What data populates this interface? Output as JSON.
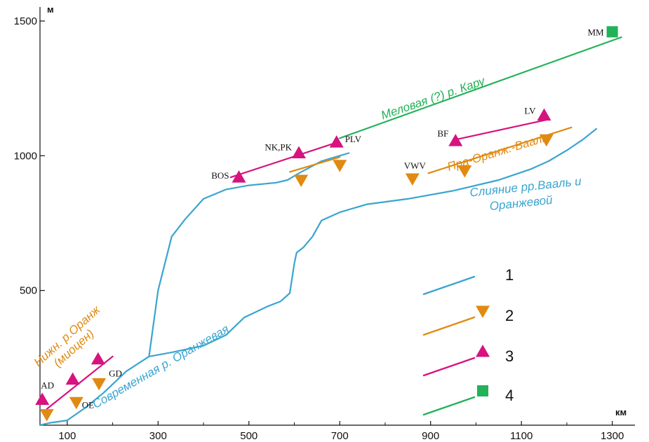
{
  "chart_data": {
    "type": "line",
    "title": "",
    "xlabel": "км",
    "ylabel": "м",
    "xlim": [
      40,
      1350
    ],
    "ylim": [
      0,
      1500
    ],
    "xticks": [
      100,
      300,
      500,
      700,
      900,
      1100,
      1300
    ],
    "yticks": [
      500,
      1000,
      1500
    ],
    "colors": {
      "blue": "#3aa5cf",
      "orange": "#e08a12",
      "magenta": "#d6137f",
      "green": "#22b257"
    },
    "series": [
      {
        "key": "modern_orange",
        "color": "#3aa5cf",
        "points": [
          [
            40,
            0
          ],
          [
            60,
            8
          ],
          [
            100,
            18
          ],
          [
            140,
            65
          ],
          [
            180,
            120
          ],
          [
            230,
            200
          ],
          [
            280,
            255
          ],
          [
            330,
            270
          ],
          [
            400,
            295
          ],
          [
            450,
            335
          ],
          [
            490,
            400
          ],
          [
            540,
            440
          ],
          [
            570,
            460
          ],
          [
            590,
            490
          ],
          [
            600,
            600
          ],
          [
            605,
            640
          ],
          [
            620,
            660
          ],
          [
            640,
            700
          ],
          [
            660,
            760
          ],
          [
            700,
            790
          ],
          [
            760,
            820
          ],
          [
            850,
            840
          ],
          [
            950,
            870
          ],
          [
            1050,
            910
          ],
          [
            1120,
            950
          ],
          [
            1160,
            980
          ],
          [
            1200,
            1020
          ],
          [
            1235,
            1060
          ],
          [
            1265,
            1100
          ]
        ]
      },
      {
        "key": "branch_upper",
        "color": "#3aa5cf",
        "points": [
          [
            280,
            255
          ],
          [
            300,
            500
          ],
          [
            330,
            700
          ],
          [
            360,
            765
          ],
          [
            400,
            840
          ],
          [
            450,
            875
          ],
          [
            500,
            890
          ],
          [
            560,
            900
          ],
          [
            585,
            910
          ],
          [
            610,
            935
          ],
          [
            660,
            980
          ],
          [
            700,
            1000
          ],
          [
            720,
            1010
          ]
        ]
      },
      {
        "key": "lower_orange_miocene",
        "color": "#d6137f",
        "points": [
          [
            55,
            60
          ],
          [
            200,
            255
          ]
        ]
      },
      {
        "key": "nk_plv",
        "color": "#d6137f",
        "points": [
          [
            460,
            920
          ],
          [
            695,
            1050
          ]
        ]
      },
      {
        "key": "nk_plv_orange",
        "color": "#e08a12",
        "points": [
          [
            590,
            940
          ],
          [
            700,
            995
          ]
        ]
      },
      {
        "key": "cretaceous_karoo",
        "color": "#22b257",
        "points": [
          [
            700,
            1065
          ],
          [
            1320,
            1440
          ]
        ]
      },
      {
        "key": "pra_orange_vaal_orange",
        "color": "#e08a12",
        "points": [
          [
            895,
            935
          ],
          [
            1210,
            1105
          ]
        ]
      },
      {
        "key": "pra_orange_vaal_magenta",
        "color": "#d6137f",
        "points": [
          [
            955,
            1060
          ],
          [
            1160,
            1135
          ]
        ]
      }
    ],
    "markers": [
      {
        "name": "AD",
        "shape": "triangle-up",
        "color": "#d6137f",
        "x": 45,
        "y": 95
      },
      {
        "name": "",
        "shape": "triangle-down",
        "color": "#e08a12",
        "x": 55,
        "y": 40
      },
      {
        "name": "",
        "shape": "triangle-up",
        "color": "#d6137f",
        "x": 112,
        "y": 170
      },
      {
        "name": "OE",
        "shape": "triangle-down",
        "color": "#e08a12",
        "x": 120,
        "y": 85
      },
      {
        "name": "",
        "shape": "triangle-up",
        "color": "#d6137f",
        "x": 168,
        "y": 245
      },
      {
        "name": "GD",
        "shape": "triangle-down",
        "color": "#e08a12",
        "x": 170,
        "y": 155
      },
      {
        "name": "BOS",
        "shape": "triangle-up",
        "color": "#d6137f",
        "x": 478,
        "y": 920
      },
      {
        "name": "",
        "shape": "triangle-down",
        "color": "#e08a12",
        "x": 615,
        "y": 910
      },
      {
        "name": "NK,PK",
        "shape": "triangle-up",
        "color": "#d6137f",
        "x": 610,
        "y": 1010
      },
      {
        "name": "PLV",
        "shape": "triangle-up",
        "color": "#d6137f",
        "x": 693,
        "y": 1050
      },
      {
        "name": "",
        "shape": "triangle-down",
        "color": "#e08a12",
        "x": 700,
        "y": 965
      },
      {
        "name": "VWV",
        "shape": "triangle-down",
        "color": "#e08a12",
        "x": 860,
        "y": 915
      },
      {
        "name": "BF",
        "shape": "triangle-up",
        "color": "#d6137f",
        "x": 955,
        "y": 1055
      },
      {
        "name": "",
        "shape": "triangle-down",
        "color": "#e08a12",
        "x": 975,
        "y": 945
      },
      {
        "name": "LV",
        "shape": "triangle-up",
        "color": "#d6137f",
        "x": 1150,
        "y": 1150
      },
      {
        "name": "",
        "shape": "triangle-down",
        "color": "#e08a12",
        "x": 1155,
        "y": 1060
      },
      {
        "name": "MM",
        "shape": "square",
        "color": "#22b257",
        "x": 1300,
        "y": 1460
      }
    ],
    "annotations": [
      {
        "text": "Меловая (?) р. Кару",
        "color": "#22b257",
        "x": 908,
        "y": 1200,
        "angle": -19
      },
      {
        "text": "Пра-Оранж.-Вааль",
        "color": "#e08a12",
        "x": 1050,
        "y": 1000,
        "angle": -17
      },
      {
        "text": "Слияние рр.Вааль и",
        "color": "#3aa5cf",
        "x": 1110,
        "y": 870,
        "angle": -6
      },
      {
        "text": "Оранжевой",
        "color": "#3aa5cf",
        "x": 1100,
        "y": 810,
        "angle": -6
      },
      {
        "text": "Современная р. Оранжевая",
        "color": "#3aa5cf",
        "x": 310,
        "y": 205,
        "angle": -30
      },
      {
        "text": "Нижн. р.Оранж",
        "color": "#e08a12",
        "x": 105,
        "y": 320,
        "angle": -42
      },
      {
        "text": "(миоцен)",
        "color": "#e08a12",
        "x": 120,
        "y": 275,
        "angle": -42
      }
    ],
    "legend": {
      "position": "bottom-right",
      "items": [
        {
          "label": "1",
          "color": "#3aa5cf",
          "marker": "none"
        },
        {
          "label": "2",
          "color": "#e08a12",
          "marker": "triangle-down"
        },
        {
          "label": "3",
          "color": "#d6137f",
          "marker": "triangle-up"
        },
        {
          "label": "4",
          "color": "#22b257",
          "marker": "square"
        }
      ]
    }
  }
}
